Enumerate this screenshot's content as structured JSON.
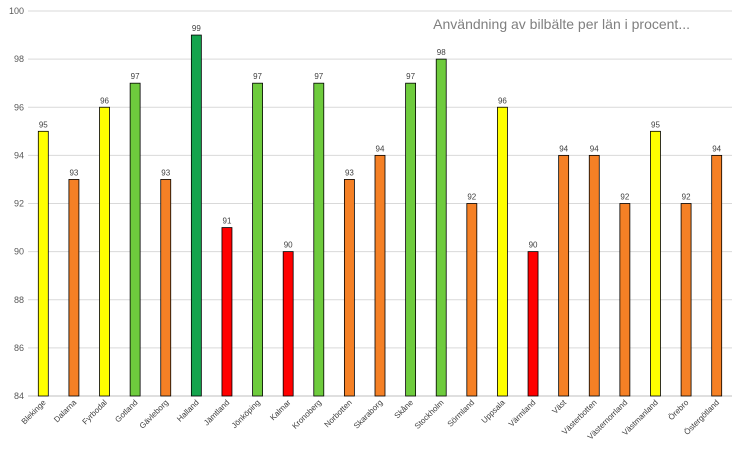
{
  "chart_data": {
    "type": "bar",
    "title": "Användning av bilbälte per län i procent...",
    "xlabel": "",
    "ylabel": "",
    "ylim": [
      84,
      100
    ],
    "yticks": [
      84,
      86,
      88,
      90,
      92,
      94,
      96,
      98,
      100
    ],
    "grid": true,
    "legend": "none",
    "categories": [
      "Blekinge",
      "Dalarna",
      "Fyrbodal",
      "Gotland",
      "Gävleborg",
      "Halland",
      "Jämtland",
      "Jönköping",
      "Kalmar",
      "Kronoberg",
      "Norbotten",
      "Skaraborg",
      "Skåne",
      "Stockholm",
      "Sörmland",
      "Uppsala",
      "Värmland",
      "Väst",
      "Västerbotten",
      "Västernorrland",
      "Västmanland",
      "Örebro",
      "Östergötland"
    ],
    "values": [
      95,
      93,
      96,
      97,
      93,
      99,
      91,
      97,
      90,
      97,
      93,
      94,
      97,
      98,
      92,
      96,
      90,
      94,
      94,
      92,
      95,
      92,
      94
    ],
    "bar_colors": [
      "#ffff00",
      "#f58025",
      "#ffff00",
      "#6ecb3d",
      "#f58025",
      "#14a44d",
      "#ff0000",
      "#6ecb3d",
      "#ff0000",
      "#6ecb3d",
      "#f58025",
      "#f58025",
      "#6ecb3d",
      "#6ecb3d",
      "#f58025",
      "#ffff00",
      "#ff0000",
      "#f58025",
      "#f58025",
      "#f58025",
      "#ffff00",
      "#f58025",
      "#f58025"
    ]
  }
}
